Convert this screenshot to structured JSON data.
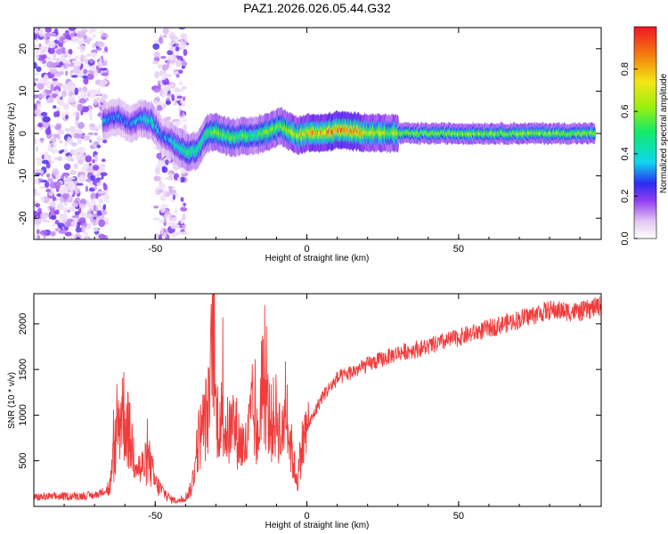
{
  "title": "PAZ1.2026.026.05.44.G32",
  "chart_data": [
    {
      "type": "heatmap",
      "xlabel": "Height of straight line (km)",
      "ylabel": "Frequency (Hz)",
      "xlim": [
        -90,
        97
      ],
      "ylim": [
        -25,
        25
      ],
      "xticks": [
        -50,
        0,
        50
      ],
      "yticks": [
        -20,
        -10,
        0,
        10,
        20
      ],
      "colorbar": {
        "label": "Normalized spectral amplitude",
        "range": [
          0,
          1
        ],
        "ticks": [
          "0.0",
          "0.2",
          "0.4",
          "0.6",
          "0.8"
        ],
        "colormap": "rainbow"
      },
      "ridge": {
        "x": [
          -67,
          -62,
          -58,
          -55,
          -51,
          -48,
          -45,
          -42,
          -39,
          -36,
          -33,
          -30,
          -27,
          -24,
          -21,
          -18,
          -15,
          -12,
          -9,
          -6,
          -3,
          0,
          5,
          10,
          15,
          20,
          30,
          40,
          60,
          80,
          95
        ],
        "y": [
          3,
          4,
          2,
          3.5,
          3,
          -0.5,
          -1.5,
          -3.5,
          -4.5,
          -4,
          0,
          0.3,
          -0.5,
          -1,
          -0.5,
          -0.7,
          0,
          0.5,
          2,
          0.5,
          -0.5,
          0.2,
          0,
          0.8,
          0.5,
          0.2,
          0,
          0,
          0,
          0,
          0
        ],
        "amplitude": [
          0.35,
          0.3,
          0.3,
          0.35,
          0.4,
          0.3,
          0.35,
          0.45,
          0.5,
          0.45,
          0.5,
          0.6,
          0.55,
          0.5,
          0.55,
          0.5,
          0.55,
          0.6,
          0.55,
          0.6,
          0.7,
          0.75,
          0.8,
          0.85,
          0.8,
          0.7,
          0.6,
          0.6,
          0.6,
          0.6,
          0.6
        ]
      },
      "noise_regions": [
        [
          -90,
          -66
        ],
        [
          -50,
          -40
        ]
      ]
    },
    {
      "type": "line",
      "xlabel": "Height of straight line (km)",
      "ylabel": "SNR (10 * v/v)",
      "xlim": [
        -90,
        97
      ],
      "ylim": [
        0,
        2330
      ],
      "xticks": [
        -50,
        0,
        50
      ],
      "yticks": [
        500,
        1000,
        1500,
        2000
      ],
      "color": "#f03c3c",
      "series": [
        {
          "x": [
            -90,
            -80,
            -70,
            -65,
            -63,
            -61,
            -58,
            -55,
            -52,
            -50,
            -45,
            -42,
            -40,
            -38,
            -36,
            -34,
            -32,
            -31,
            -30,
            -28,
            -26,
            -24,
            -22,
            -20,
            -18,
            -16,
            -15,
            -12,
            -10,
            -8,
            -7,
            -6,
            -5,
            -4,
            -3,
            -2,
            0,
            5,
            10,
            20,
            30,
            40,
            50,
            60,
            70,
            80,
            90,
            97
          ],
          "y": [
            100,
            110,
            120,
            200,
            700,
            1100,
            700,
            400,
            500,
            250,
            80,
            60,
            100,
            200,
            700,
            900,
            1100,
            2100,
            1000,
            950,
            800,
            900,
            700,
            650,
            1050,
            650,
            1400,
            900,
            1000,
            700,
            1300,
            800,
            600,
            400,
            300,
            600,
            850,
            1200,
            1400,
            1550,
            1680,
            1750,
            1850,
            1950,
            2050,
            2150,
            2130,
            2200
          ]
        }
      ]
    }
  ]
}
